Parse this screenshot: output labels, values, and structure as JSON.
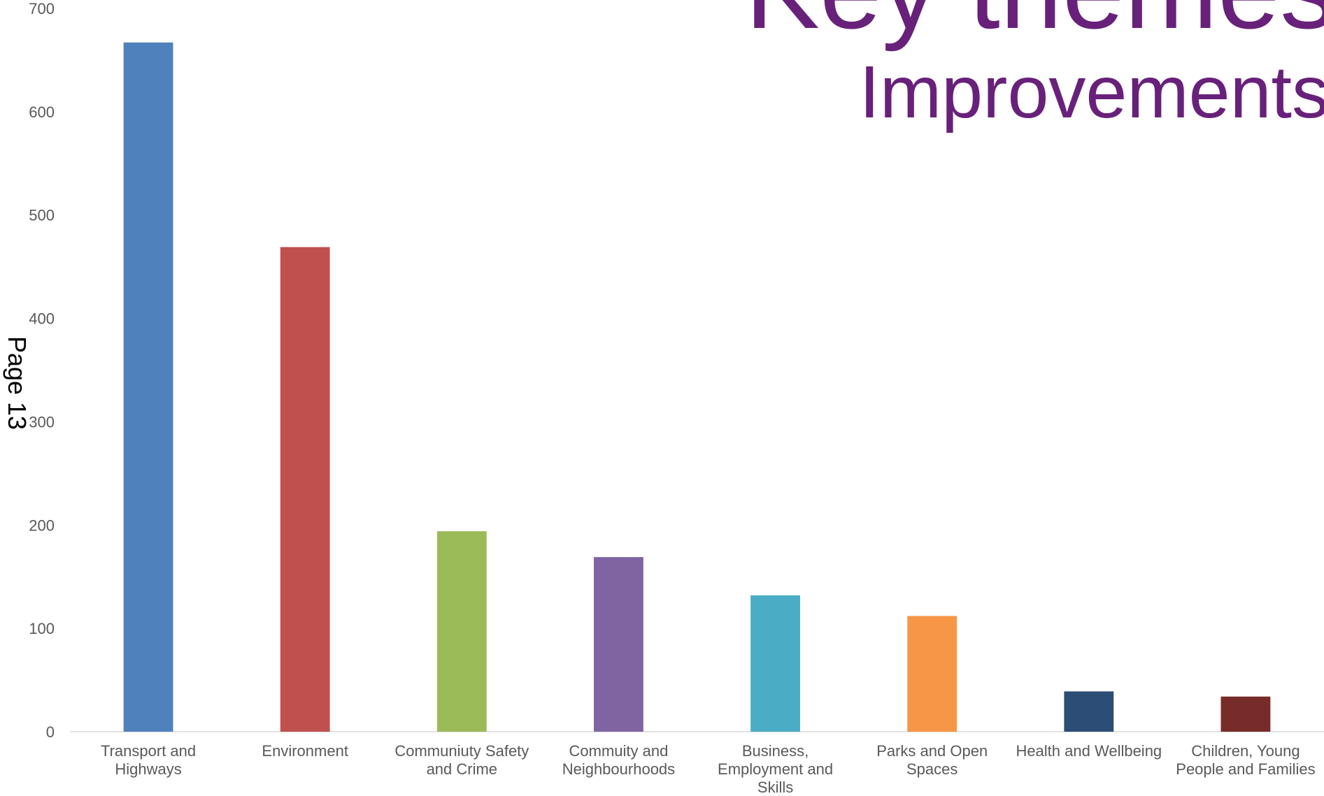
{
  "page_label": "Page 13",
  "chart_data": {
    "type": "bar",
    "title": "Key themes",
    "subtitle": "Improvements",
    "categories": [
      "Transport and Highways",
      "Environment",
      "Communiuty Safety and Crime",
      "Commuity and Neighbourhoods",
      "Business, Employment and Skills",
      "Parks and Open Spaces",
      "Health and Wellbeing",
      "Children, Young People and Families"
    ],
    "values": [
      667,
      469,
      194,
      169,
      132,
      112,
      39,
      34
    ],
    "colors": [
      "#4f81bd",
      "#c0504d",
      "#9bbb59",
      "#8064a2",
      "#4bacc6",
      "#f79646",
      "#2c4d75",
      "#772c2a"
    ],
    "ylim": [
      0,
      700
    ],
    "yticks": [
      0,
      100,
      200,
      300,
      400,
      500,
      600,
      700
    ],
    "grid": false
  }
}
